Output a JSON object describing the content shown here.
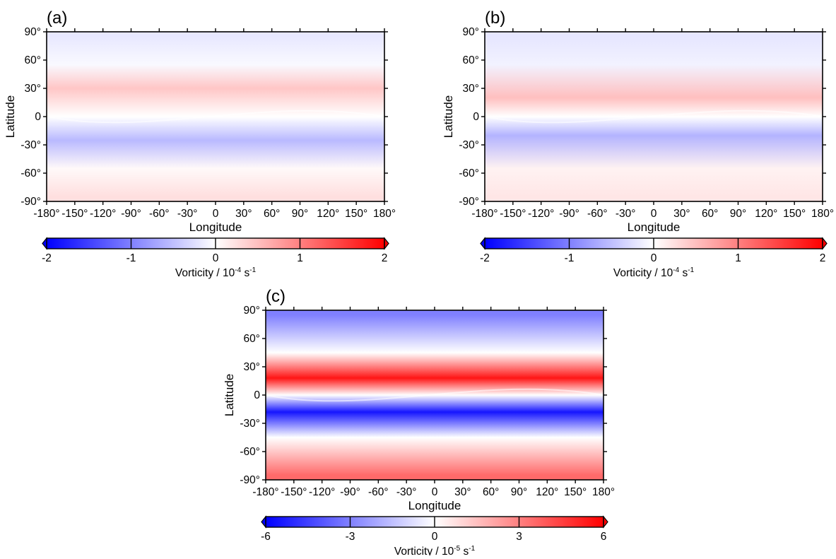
{
  "chart_data": [
    {
      "type": "heatmap",
      "panel_label": "(a)",
      "xlabel": "Longitude",
      "ylabel": "Latitude",
      "xlim": [
        -180,
        180
      ],
      "ylim": [
        -90,
        90
      ],
      "x_ticks": [
        "-180°",
        "-150°",
        "-120°",
        "-90°",
        "-60°",
        "-30°",
        "0",
        "30°",
        "60°",
        "90°",
        "120°",
        "150°",
        "180°"
      ],
      "y_ticks": [
        "90°",
        "60°",
        "30°",
        "0",
        "-30°",
        "-60°",
        "-90°"
      ],
      "colorbar": {
        "label_prefix": "Vorticity / 10",
        "label_exp": "-4",
        "label_unit": " s",
        "label_unit_exp": "-1",
        "range": [
          -2,
          2
        ],
        "ticks": [
          "-2",
          "-1",
          "0",
          "1",
          "2"
        ]
      },
      "field": {
        "description_values": "vorticity in 1e-4 s^-1",
        "band_values": [
          {
            "lat": 85,
            "value": -0.18
          },
          {
            "lat": 55,
            "value": -0.05
          },
          {
            "lat": 30,
            "value": 0.45
          },
          {
            "lat": 0,
            "value": 0.0
          },
          {
            "lat": -25,
            "value": -0.55
          },
          {
            "lat": -55,
            "value": 0.05
          },
          {
            "lat": -85,
            "value": 0.25
          }
        ]
      }
    },
    {
      "type": "heatmap",
      "panel_label": "(b)",
      "xlabel": "Longitude",
      "ylabel": "Latitude",
      "xlim": [
        -180,
        180
      ],
      "ylim": [
        -90,
        90
      ],
      "x_ticks": [
        "-180°",
        "-150°",
        "-120°",
        "-90°",
        "-60°",
        "-30°",
        "0",
        "30°",
        "60°",
        "90°",
        "120°",
        "150°",
        "180°"
      ],
      "y_ticks": [
        "90°",
        "60°",
        "30°",
        "0",
        "-30°",
        "-60°",
        "-90°"
      ],
      "colorbar": {
        "label_prefix": "Vorticity / 10",
        "label_exp": "-4",
        "label_unit": " s",
        "label_unit_exp": "-1",
        "range": [
          -2,
          2
        ],
        "ticks": [
          "-2",
          "-1",
          "0",
          "1",
          "2"
        ]
      },
      "field": {
        "description_values": "vorticity in 1e-4 s^-1",
        "band_values": [
          {
            "lat": 85,
            "value": -0.2
          },
          {
            "lat": 55,
            "value": -0.1
          },
          {
            "lat": 20,
            "value": 0.5
          },
          {
            "lat": 0,
            "value": 0.0
          },
          {
            "lat": -20,
            "value": -0.6
          },
          {
            "lat": -55,
            "value": 0.1
          },
          {
            "lat": -85,
            "value": 0.2
          }
        ]
      }
    },
    {
      "type": "heatmap",
      "panel_label": "(c)",
      "xlabel": "Longitude",
      "ylabel": "Latitude",
      "xlim": [
        -180,
        180
      ],
      "ylim": [
        -90,
        90
      ],
      "x_ticks": [
        "-180°",
        "-150°",
        "-120°",
        "-90°",
        "-60°",
        "-30°",
        "0",
        "30°",
        "60°",
        "90°",
        "120°",
        "150°",
        "180°"
      ],
      "y_ticks": [
        "90°",
        "60°",
        "30°",
        "0",
        "-30°",
        "-60°",
        "-90°"
      ],
      "colorbar": {
        "label_prefix": "Vorticity / 10",
        "label_exp": "-5",
        "label_unit": " s",
        "label_unit_exp": "-1",
        "range": [
          -6,
          6
        ],
        "ticks": [
          "-6",
          "-3",
          "0",
          "3",
          "6"
        ]
      },
      "field": {
        "description_values": "vorticity in 1e-5 s^-1",
        "band_values": [
          {
            "lat": 85,
            "value": -3.0
          },
          {
            "lat": 45,
            "value": 0.0
          },
          {
            "lat": 18,
            "value": 5.5
          },
          {
            "lat": 0,
            "value": 0.0
          },
          {
            "lat": -18,
            "value": -5.5
          },
          {
            "lat": -45,
            "value": 0.0
          },
          {
            "lat": -85,
            "value": 3.5
          }
        ]
      }
    }
  ]
}
